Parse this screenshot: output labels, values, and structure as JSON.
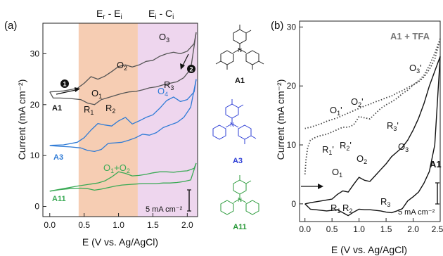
{
  "panel_a": {
    "label": "(a)",
    "xlabel": "E (V vs. Ag/AgCl)",
    "ylabel": "Current (mA cm⁻²)",
    "xticks": [
      "0.0",
      "0.5",
      "1.0",
      "1.5",
      "2.0"
    ],
    "yticks": [
      "0",
      "10",
      "20",
      "30"
    ],
    "region1_label": "E",
    "region1_sub": "r",
    "region1_mid": " - E",
    "region1_sub2": "i",
    "region2_label": "E",
    "region2_sub": "i",
    "region2_mid": " - C",
    "region2_sub2": "i",
    "region1_color": "#f6cdb3",
    "region2_color": "#eed6ee",
    "curve_names": {
      "a1": "A1",
      "a3": "A3",
      "a11": "A11"
    },
    "colors": {
      "a1": "#555555",
      "a3": "#2e7bd6",
      "a11": "#3aaa55"
    },
    "peaks": {
      "o1": "O",
      "o1_sub": "1",
      "o2": "O",
      "o2_sub": "2",
      "o3": "O",
      "o3_sub": "3",
      "o4": "O",
      "o4_sub": "4",
      "r1": "R",
      "r1_sub": "1",
      "r2": "R",
      "r2_sub": "2",
      "r3": "R",
      "r3_sub": "3",
      "o1o2": "O",
      "o1o2_sub1": "1",
      "o1o2_plus": "+O",
      "o1o2_sub2": "2"
    },
    "markers": [
      "1",
      "2"
    ],
    "scalebar": "5 mA cm⁻²"
  },
  "structures": {
    "a1": {
      "label": "A1",
      "color": "#111111"
    },
    "a3": {
      "label": "A3",
      "color": "#2e3fd6"
    },
    "a11": {
      "label": "A11",
      "color": "#2a9a3a"
    }
  },
  "panel_b": {
    "label": "(b)",
    "xlabel": "E (V vs. Ag/AgCl)",
    "ylabel": "Current (mA cm⁻²)",
    "xticks": [
      "0.0",
      "0.5",
      "1.0",
      "1.5",
      "2.0",
      "2.5"
    ],
    "yticks": [
      "0",
      "10",
      "20",
      "30"
    ],
    "tfa_label": "A1 + TFA",
    "a1_label": "A1",
    "peaks": {
      "o1p": "O",
      "o1p_sub": "1",
      "o2p": "O",
      "o2p_sub": "2",
      "o3p": "O",
      "o3p_sub": "3",
      "r3p": "R",
      "r3p_sub": "3",
      "r1p": "R",
      "r1p_sub": "1",
      "r2p": "R",
      "r2p_sub": "2",
      "o1": "O",
      "o1_sub": "1",
      "o2": "O",
      "o2_sub": "2",
      "o3": "O",
      "o3_sub": "3",
      "r1": "R",
      "r1_sub": "1",
      "r2": "R",
      "r2_sub": "2",
      "r3": "R",
      "r3_sub": "3",
      "prime": "'"
    },
    "scalebar": "5 mA cm⁻²",
    "tfa_color": "#444444",
    "a1_color": "#111111"
  },
  "chart_data": [
    {
      "type": "line",
      "title": "",
      "xlabel": "E (V vs. Ag/AgCl)",
      "ylabel": "Current (mA cm⁻²)",
      "xlim": [
        -0.1,
        2.15
      ],
      "ylim": [
        -2,
        36
      ],
      "grid": false,
      "series": [
        {
          "name": "A1",
          "x": [
            0.0,
            0.2,
            0.4,
            0.5,
            0.6,
            0.7,
            0.8,
            0.9,
            1.0,
            1.1,
            1.2,
            1.3,
            1.4,
            1.5,
            1.6,
            1.7,
            1.8,
            1.9,
            2.0,
            2.1,
            2.13
          ],
          "y": [
            22.5,
            22.7,
            23.2,
            24.2,
            25.5,
            25.0,
            25.6,
            26.5,
            27.5,
            27.8,
            27.4,
            27.8,
            28.5,
            28.7,
            29.5,
            30.0,
            30.3,
            30.0,
            30.5,
            32.0,
            34.2
          ]
        },
        {
          "name": "A1",
          "x": [
            2.13,
            2.05,
            1.95,
            1.85,
            1.75,
            1.65,
            1.55,
            1.45,
            1.35,
            1.25,
            1.15,
            1.05,
            0.95,
            0.85,
            0.75,
            0.65,
            0.55,
            0.45,
            0.3,
            0.15,
            0.05,
            0.0
          ],
          "y": [
            34.2,
            27.0,
            25.3,
            24.5,
            24.2,
            23.9,
            23.5,
            23.3,
            22.9,
            22.6,
            22.5,
            22.2,
            21.8,
            21.4,
            21.0,
            20.0,
            20.3,
            21.0,
            21.2,
            21.3,
            21.3,
            22.5
          ]
        },
        {
          "name": "A3",
          "x": [
            0.0,
            0.2,
            0.4,
            0.5,
            0.6,
            0.7,
            0.8,
            0.9,
            1.0,
            1.1,
            1.2,
            1.3,
            1.4,
            1.5,
            1.6,
            1.7,
            1.8,
            1.9,
            2.0,
            2.1,
            2.13
          ],
          "y": [
            12.0,
            12.1,
            12.6,
            13.5,
            15.0,
            16.3,
            16.0,
            15.8,
            16.8,
            17.5,
            16.2,
            16.8,
            17.5,
            18.0,
            19.3,
            20.8,
            21.5,
            20.6,
            21.0,
            22.5,
            25.0
          ]
        },
        {
          "name": "A3",
          "x": [
            2.13,
            2.05,
            1.95,
            1.85,
            1.75,
            1.65,
            1.55,
            1.45,
            1.35,
            1.25,
            1.15,
            1.05,
            0.95,
            0.85,
            0.75,
            0.65,
            0.55,
            0.45,
            0.3,
            0.15,
            0.05,
            0.0
          ],
          "y": [
            25.0,
            19.5,
            17.5,
            16.5,
            16.0,
            15.5,
            14.5,
            14.0,
            14.2,
            13.5,
            13.0,
            12.6,
            12.5,
            12.4,
            11.2,
            10.8,
            11.0,
            11.5,
            11.7,
            11.8,
            11.9,
            12.0
          ]
        },
        {
          "name": "A11",
          "x": [
            0.0,
            0.2,
            0.4,
            0.5,
            0.6,
            0.7,
            0.8,
            0.9,
            1.0,
            1.1,
            1.2,
            1.3,
            1.4,
            1.5,
            1.6,
            1.7,
            1.8,
            1.9,
            2.0,
            2.1,
            2.13
          ],
          "y": [
            3.0,
            3.5,
            4.0,
            4.2,
            4.4,
            4.6,
            5.0,
            5.8,
            6.8,
            6.5,
            6.0,
            6.1,
            6.3,
            6.6,
            6.8,
            6.8,
            6.7,
            6.9,
            7.0,
            7.5,
            8.5
          ]
        },
        {
          "name": "A11",
          "x": [
            2.13,
            2.05,
            1.95,
            1.85,
            1.75,
            1.65,
            1.55,
            1.45,
            1.35,
            1.25,
            1.15,
            1.05,
            0.95,
            0.85,
            0.75,
            0.65,
            0.55,
            0.45,
            0.3,
            0.15,
            0.05,
            0.0
          ],
          "y": [
            8.5,
            5.2,
            4.9,
            4.7,
            4.6,
            4.6,
            4.5,
            4.5,
            4.5,
            4.4,
            4.3,
            4.2,
            4.0,
            3.7,
            3.4,
            3.2,
            3.5,
            3.6,
            3.5,
            3.3,
            3.1,
            3.0
          ]
        }
      ]
    },
    {
      "type": "line",
      "title": "",
      "xlabel": "E (V vs. Ag/AgCl)",
      "ylabel": "Current (mA cm⁻²)",
      "xlim": [
        -0.1,
        2.5
      ],
      "ylim": [
        -3,
        31
      ],
      "grid": false,
      "series": [
        {
          "name": "A1 + TFA",
          "x": [
            0.0,
            0.02,
            0.05,
            0.1,
            0.2,
            0.3,
            0.4,
            0.5,
            0.6,
            0.7,
            0.8,
            0.9,
            1.0,
            1.1,
            1.2,
            1.3,
            1.4,
            1.5,
            1.6,
            1.7,
            1.8,
            1.9,
            2.0,
            2.1,
            2.2,
            2.3,
            2.4,
            2.5
          ],
          "y": [
            5.0,
            7.5,
            9.5,
            10.8,
            11.3,
            11.6,
            11.8,
            12.2,
            12.6,
            13.0,
            13.0,
            13.4,
            14.8,
            14.6,
            14.4,
            15.3,
            16.2,
            16.8,
            17.3,
            17.9,
            18.7,
            19.3,
            20.1,
            20.9,
            21.8,
            23.5,
            25.5,
            28.0
          ]
        },
        {
          "name": "A1 + TFA",
          "x": [
            2.5,
            2.4,
            2.3,
            2.2,
            2.1,
            2.0,
            1.9,
            1.8,
            1.7,
            1.6,
            1.5,
            1.4,
            1.3,
            1.2,
            1.1,
            1.0,
            0.9,
            0.8,
            0.7,
            0.6,
            0.5,
            0.4,
            0.3,
            0.2,
            0.1,
            0.0
          ],
          "y": [
            28.0,
            24.5,
            22.8,
            21.5,
            20.7,
            20.2,
            19.7,
            19.2,
            18.8,
            18.3,
            18.0,
            17.6,
            17.3,
            16.9,
            16.6,
            16.2,
            15.8,
            15.4,
            15.0,
            14.6,
            14.3,
            14.0,
            13.6,
            13.3,
            13.0,
            12.8
          ]
        },
        {
          "name": "A1",
          "x": [
            0.0,
            0.1,
            0.3,
            0.5,
            0.6,
            0.7,
            0.8,
            0.9,
            1.0,
            1.1,
            1.2,
            1.3,
            1.4,
            1.5,
            1.6,
            1.7,
            1.8,
            1.9,
            2.0,
            2.1,
            2.2,
            2.3,
            2.4,
            2.5
          ],
          "y": [
            0.0,
            0.2,
            0.5,
            0.8,
            1.6,
            2.2,
            2.0,
            3.3,
            4.5,
            4.0,
            3.8,
            4.8,
            5.8,
            6.8,
            8.0,
            8.8,
            9.6,
            10.8,
            12.5,
            14.5,
            17.0,
            20.0,
            22.5,
            25.0
          ]
        },
        {
          "name": "A1",
          "x": [
            2.5,
            2.4,
            2.3,
            2.2,
            2.1,
            2.0,
            1.9,
            1.8,
            1.7,
            1.6,
            1.5,
            1.4,
            1.3,
            1.2,
            1.1,
            1.0,
            0.9,
            0.8,
            0.7,
            0.6,
            0.5,
            0.4,
            0.3,
            0.2,
            0.1,
            0.0
          ],
          "y": [
            25.0,
            10.0,
            5.5,
            3.5,
            2.0,
            1.2,
            0.5,
            -0.8,
            -1.2,
            -1.5,
            -1.4,
            -1.2,
            -1.1,
            -1.0,
            -1.0,
            -0.9,
            -1.4,
            -2.0,
            -1.5,
            -1.0,
            -1.1,
            -1.2,
            -1.1,
            -1.0,
            -0.9,
            0.0
          ]
        }
      ]
    }
  ]
}
